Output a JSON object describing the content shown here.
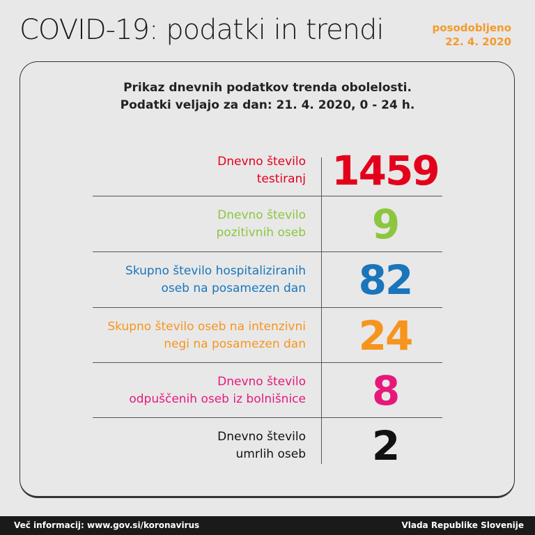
{
  "header": {
    "title": "COVID-19: podatki in trendi",
    "updated_label": "posodobljeno",
    "updated_date": "22. 4. 2020"
  },
  "subtitle": {
    "line1": "Prikaz dnevnih podatkov trenda obolelosti.",
    "line2": "Podatki veljajo za dan: 21. 4. 2020, 0 - 24 h."
  },
  "rows": [
    {
      "label": "Dnevno število\ntestiranj",
      "value": "1459",
      "color": "#e3001b"
    },
    {
      "label": "Dnevno število\npozitivnih oseb",
      "value": "9",
      "color": "#8cc63f"
    },
    {
      "label": "Skupno število hospitaliziranih\noseb na posamezen dan",
      "value": "82",
      "color": "#1a75bb"
    },
    {
      "label": "Skupno število oseb na intenzivni\nnegi na posamezen dan",
      "value": "24",
      "color": "#f7941d"
    },
    {
      "label": "Dnevno število\nodpuščenih oseb iz bolnišnice",
      "value": "8",
      "color": "#e6197a"
    },
    {
      "label": "Dnevno število\numrlih oseb",
      "value": "2",
      "color": "#111111"
    }
  ],
  "footer": {
    "info": "Več informacij: www.gov.si/koronavirus",
    "org": "Vlada Republike Slovenije"
  }
}
